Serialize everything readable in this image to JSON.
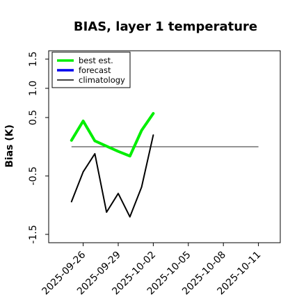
{
  "chart_data": {
    "type": "line",
    "title": "BIAS, layer 1 temperature",
    "ylabel": "Bias (K)",
    "xlabel": "",
    "ylim": [
      -1.6,
      1.65
    ],
    "xlim": [
      "2025-09-24",
      "2025-10-12"
    ],
    "y_ticks": [
      "1.5",
      "1.0",
      "0.5",
      "-0.5",
      "-1.5"
    ],
    "y_tick_values": [
      1.5,
      1.0,
      0.5,
      -0.5,
      -1.5
    ],
    "x_ticks": [
      "2025-09-26",
      "2025-09-29",
      "2025-10-02",
      "2025-10-05",
      "2025-10-08",
      "2025-10-11"
    ],
    "highlight_tick": "2025-10-02",
    "highlight_color": "#228b22",
    "grid": false,
    "legend": {
      "placement": "top-left",
      "entries": [
        "best est.",
        "forecast",
        "climatology"
      ]
    },
    "reference_line": {
      "y": 0.0,
      "x_start": "2025-09-25",
      "x_end": "2025-10-11",
      "color": "#555555"
    },
    "series": [
      {
        "name": "best est.",
        "color": "#00ee00",
        "width": 4,
        "x": [
          "2025-09-25",
          "2025-09-26",
          "2025-09-27",
          "2025-09-28",
          "2025-09-29",
          "2025-09-30",
          "2025-10-01",
          "2025-10-02"
        ],
        "values": [
          0.11,
          0.44,
          0.1,
          0.01,
          -0.08,
          -0.16,
          0.28,
          0.57
        ]
      },
      {
        "name": "forecast",
        "color": "#0000ee",
        "width": 4,
        "x": [],
        "values": []
      },
      {
        "name": "climatology",
        "color": "#000000",
        "width": 2,
        "x": [
          "2025-09-25",
          "2025-09-26",
          "2025-09-27",
          "2025-09-28",
          "2025-09-29",
          "2025-09-30",
          "2025-10-01",
          "2025-10-02"
        ],
        "values": [
          -0.94,
          -0.43,
          -0.12,
          -1.12,
          -0.8,
          -1.2,
          -0.69,
          0.2
        ]
      }
    ]
  }
}
